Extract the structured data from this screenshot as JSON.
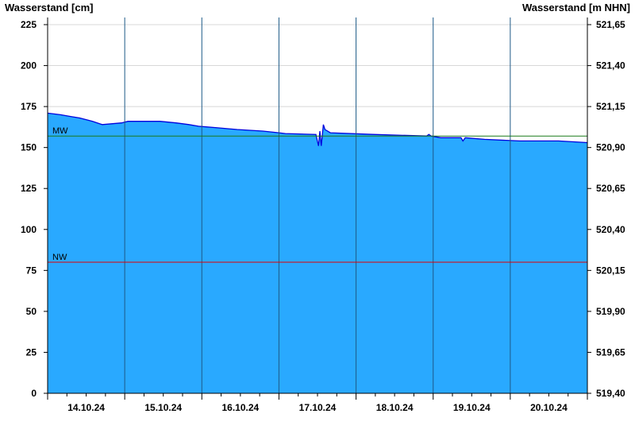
{
  "chart_data": {
    "type": "area",
    "ylabel_left": "Wasserstand [cm]",
    "ylabel_right": "Wasserstand [m NHN]",
    "ylim": [
      0,
      225
    ],
    "yticks_left": [
      "0",
      "25",
      "50",
      "75",
      "100",
      "125",
      "150",
      "175",
      "200",
      "225"
    ],
    "yticks_right": [
      "519,40",
      "519,65",
      "519,90",
      "520,15",
      "520,40",
      "520,65",
      "520,90",
      "521,15",
      "521,40",
      "521,65"
    ],
    "xlim": [
      "2024-10-14T00:00",
      "2024-10-21T00:00"
    ],
    "xtick_labels": [
      "14.10.24",
      "15.10.24",
      "16.10.24",
      "17.10.24",
      "18.10.24",
      "19.10.24",
      "20.10.24"
    ],
    "grid": true,
    "colors": {
      "fill": "#29a9ff",
      "line": "#0000dd",
      "mw": "#1a7a1a",
      "nw": "#e00000"
    },
    "reference_lines": [
      {
        "label": "MW",
        "value": 157
      },
      {
        "label": "NW",
        "value": 80
      }
    ],
    "series": [
      {
        "x": [
          "2024-10-14T00:00",
          "2024-10-14T04:00",
          "2024-10-14T07:00",
          "2024-10-14T10:00",
          "2024-10-14T12:00",
          "2024-10-14T14:00",
          "2024-10-14T17:00",
          "2024-10-14T23:00",
          "2024-10-15T01:00",
          "2024-10-15T11:00",
          "2024-10-15T16:00",
          "2024-10-15T20:00",
          "2024-10-15T23:00",
          "2024-10-16T05:00",
          "2024-10-16T11:00",
          "2024-10-16T19:00",
          "2024-10-17T00:00",
          "2024-10-17T02:00",
          "2024-10-17T11:30",
          "2024-10-17T12:20",
          "2024-10-17T12:45",
          "2024-10-17T13:10",
          "2024-10-17T13:50",
          "2024-10-17T14:20",
          "2024-10-17T16:00",
          "2024-10-18T05:20",
          "2024-10-18T22:00",
          "2024-10-18T22:40",
          "2024-10-18T23:20",
          "2024-10-19T02:20",
          "2024-10-19T08:40",
          "2024-10-19T09:15",
          "2024-10-19T10:00",
          "2024-10-19T16:00",
          "2024-10-20T03:00",
          "2024-10-20T15:00",
          "2024-10-21T00:00"
        ],
        "values": [
          171,
          170,
          169,
          168,
          167,
          166,
          164,
          165,
          166,
          166,
          165,
          164,
          163,
          162,
          161,
          160,
          159,
          158.5,
          158,
          151,
          160,
          151,
          164,
          161,
          159,
          158,
          157,
          158,
          157,
          156,
          156,
          154,
          156,
          155,
          154,
          154,
          153
        ]
      }
    ]
  }
}
